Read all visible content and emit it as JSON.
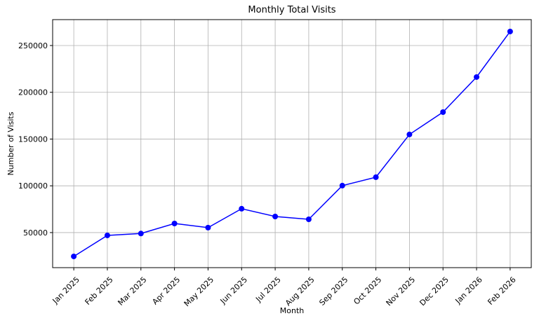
{
  "chart_data": {
    "type": "line",
    "title": "Monthly Total Visits",
    "x_label": "Month",
    "y_label": "Number of Visits",
    "categories": [
      "Jan 2025",
      "Feb 2025",
      "Mar 2025",
      "Apr 2025",
      "May 2025",
      "Jun 2025",
      "Jul 2025",
      "Aug 2025",
      "Sep 2025",
      "Oct 2025",
      "Nov 2025",
      "Dec 2025",
      "Jan 2026",
      "Feb 2026"
    ],
    "series": [
      {
        "name": "Total Visits",
        "color": "#0000ff",
        "values": [
          24500,
          47000,
          49000,
          59700,
          55300,
          75500,
          67200,
          64200,
          100200,
          109200,
          154900,
          178800,
          216300,
          265000
        ]
      }
    ],
    "ylim": [
      12500,
      277700
    ],
    "yticks": [
      50000,
      100000,
      150000,
      200000,
      250000
    ],
    "grid": true
  }
}
